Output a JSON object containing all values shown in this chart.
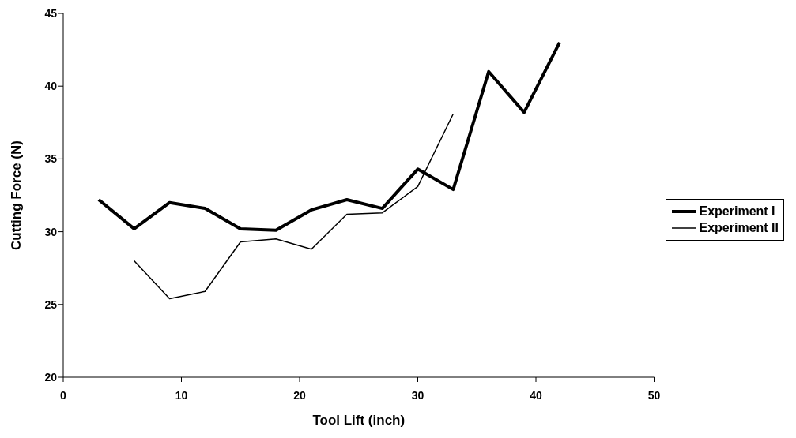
{
  "chart_data": {
    "type": "line",
    "xlabel": "Tool Lift (inch)",
    "ylabel": "Cutting Force (N)",
    "xlim": [
      0,
      50
    ],
    "xticks": [
      0,
      10,
      20,
      30,
      40,
      50
    ],
    "ylim": [
      20,
      45
    ],
    "yticks": [
      20,
      25,
      30,
      35,
      40,
      45
    ],
    "grid": false,
    "legend": "right",
    "marker": "none",
    "series": [
      {
        "name": "Experiment I",
        "color": "#000000",
        "x": [
          3,
          6,
          9,
          12,
          15,
          18,
          21,
          24,
          27,
          30,
          33,
          36,
          39,
          42
        ],
        "values": [
          32.2,
          30.2,
          32.0,
          31.6,
          30.2,
          30.1,
          31.5,
          32.2,
          31.6,
          34.3,
          32.9,
          41.0,
          38.2,
          43.0
        ]
      },
      {
        "name": "Experiment II",
        "color": "#000000",
        "x": [
          6,
          9,
          12,
          15,
          18,
          21,
          24,
          27,
          30,
          33
        ],
        "values": [
          28.0,
          25.4,
          25.9,
          29.3,
          29.5,
          28.8,
          31.2,
          31.3,
          33.1,
          38.1
        ]
      }
    ]
  }
}
